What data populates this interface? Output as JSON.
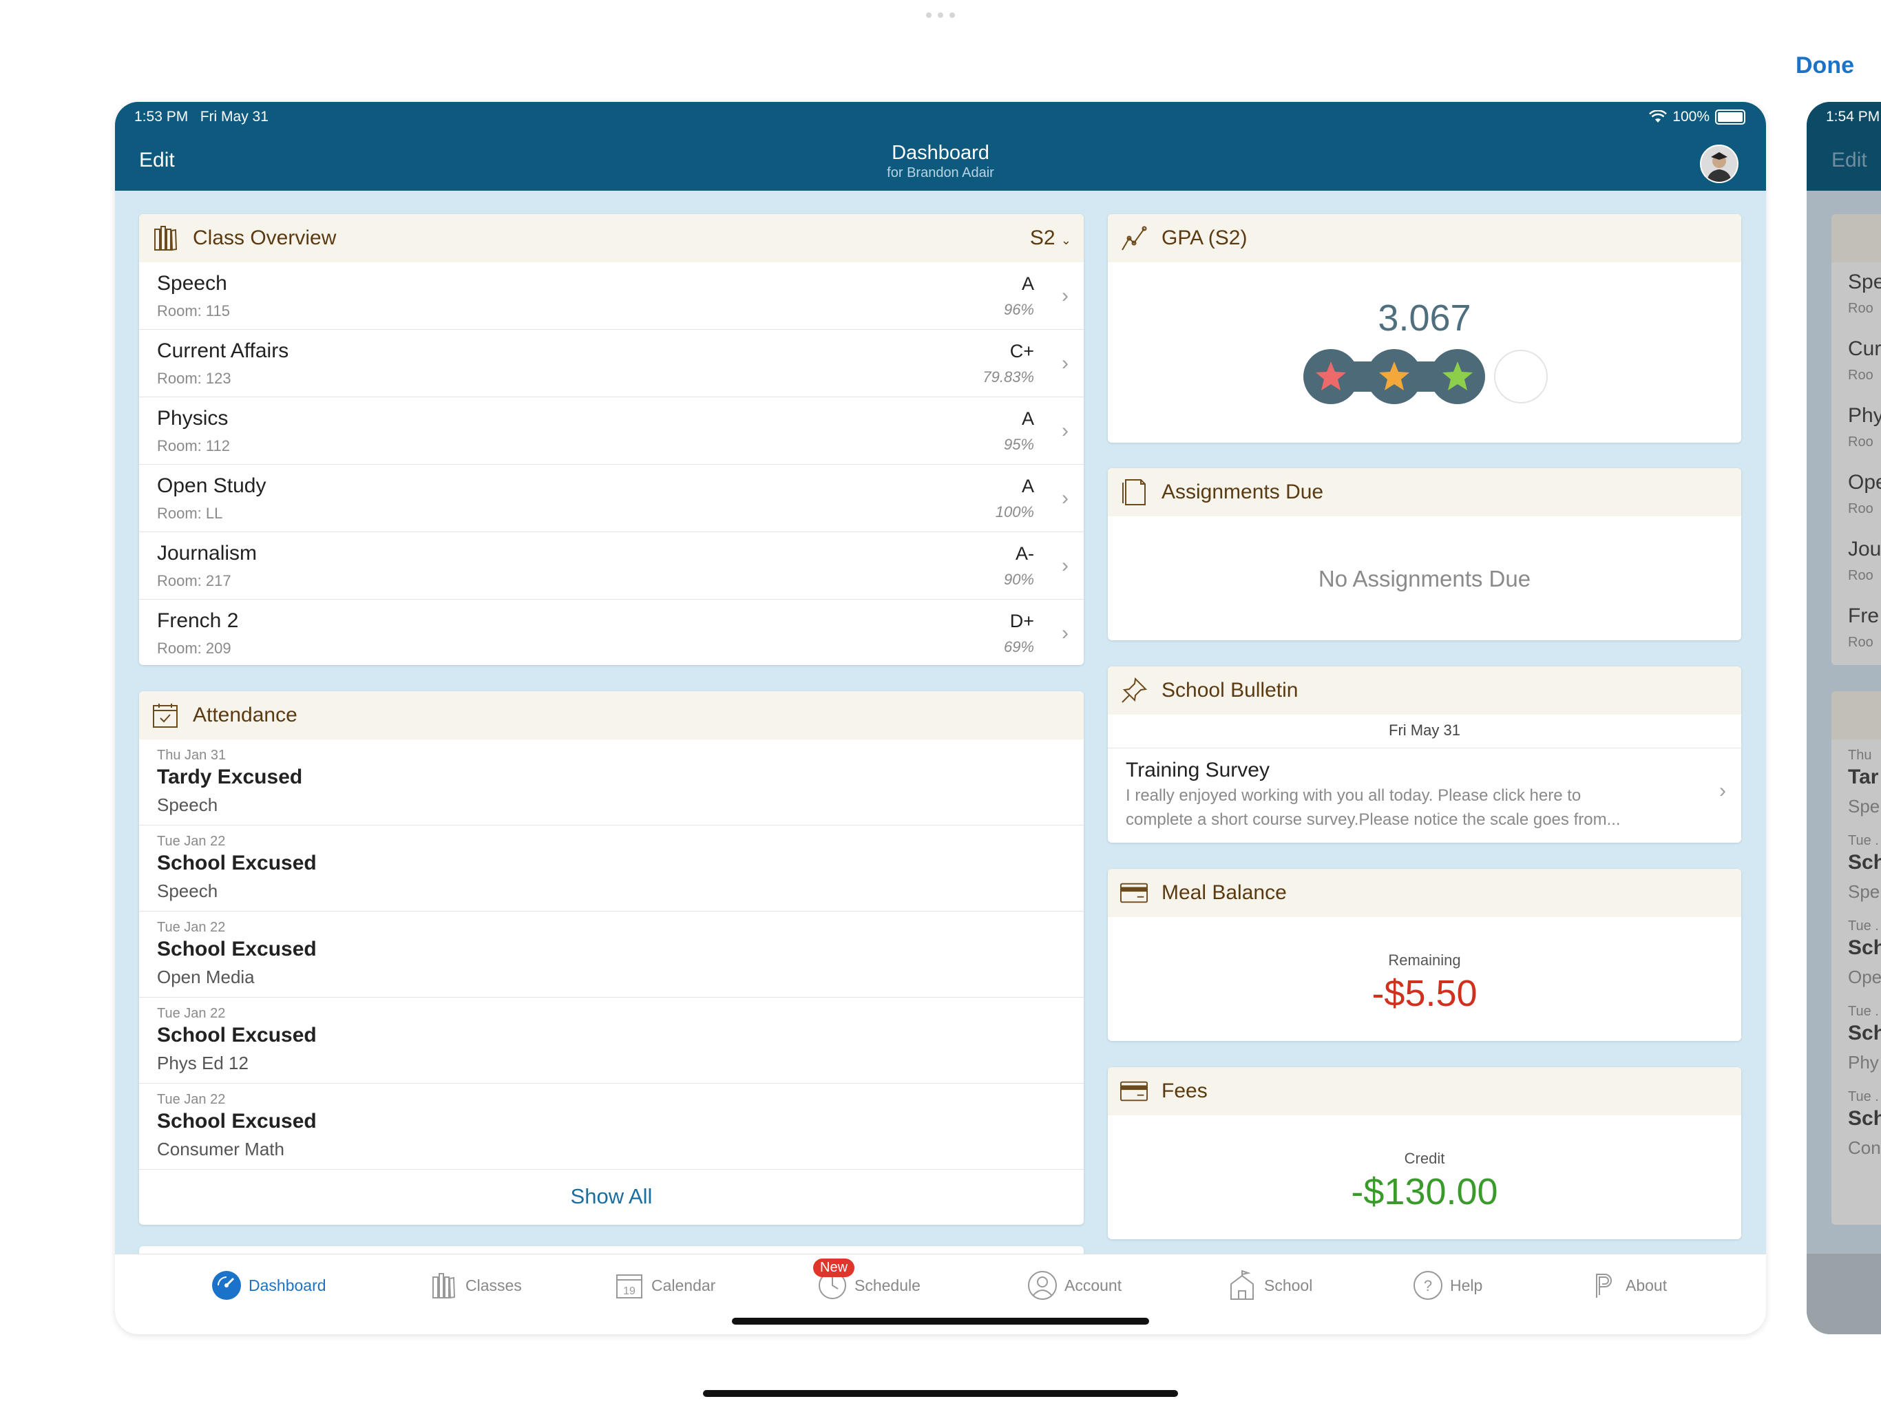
{
  "window": {
    "done_label": "Done"
  },
  "status": {
    "time": "1:53 PM",
    "date": "Fri May 31",
    "battery": "100%"
  },
  "navbar": {
    "edit_label": "Edit",
    "title": "Dashboard",
    "subtitle": "for Brandon Adair"
  },
  "class_overview": {
    "title": "Class Overview",
    "term": "S2",
    "classes": [
      {
        "name": "Speech",
        "room": "Room: 115",
        "grade": "A",
        "percent": "96%"
      },
      {
        "name": "Current Affairs",
        "room": "Room: 123",
        "grade": "C+",
        "percent": "79.83%"
      },
      {
        "name": "Physics",
        "room": "Room: 112",
        "grade": "A",
        "percent": "95%"
      },
      {
        "name": "Open Study",
        "room": "Room: LL",
        "grade": "A",
        "percent": "100%"
      },
      {
        "name": "Journalism",
        "room": "Room: 217",
        "grade": "A-",
        "percent": "90%"
      },
      {
        "name": "French 2",
        "room": "Room: 209",
        "grade": "D+",
        "percent": "69%"
      }
    ]
  },
  "attendance": {
    "title": "Attendance",
    "records": [
      {
        "date": "Thu Jan 31",
        "type": "Tardy Excused",
        "class": "Speech"
      },
      {
        "date": "Tue Jan 22",
        "type": "School Excused",
        "class": "Speech"
      },
      {
        "date": "Tue Jan 22",
        "type": "School Excused",
        "class": "Open Media"
      },
      {
        "date": "Tue Jan 22",
        "type": "School Excused",
        "class": "Phys Ed 12"
      },
      {
        "date": "Tue Jan 22",
        "type": "School Excused",
        "class": "Consumer Math"
      }
    ],
    "show_all_label": "Show All"
  },
  "gpa": {
    "title": "GPA (S2)",
    "value": "3.067",
    "stars_filled": 3,
    "stars_total": 4
  },
  "assignments": {
    "title": "Assignments Due",
    "empty_text": "No Assignments Due"
  },
  "bulletin": {
    "title": "School Bulletin",
    "date": "Fri May 31",
    "item_title": "Training Survey",
    "item_line1": "I really enjoyed working with you all today. Please click here to",
    "item_line2": "complete a short course survey.Please notice the scale goes from..."
  },
  "meal": {
    "title": "Meal Balance",
    "label": "Remaining",
    "amount": "-$5.50",
    "amount_color": "#d0311f"
  },
  "fees": {
    "title": "Fees",
    "label": "Credit",
    "amount": "-$130.00",
    "amount_color": "#3b9a2c"
  },
  "tabs": [
    {
      "label": "Dashboard",
      "icon": "dashboard-icon"
    },
    {
      "label": "Classes",
      "icon": "books-icon"
    },
    {
      "label": "Calendar",
      "icon": "calendar-icon"
    },
    {
      "label": "Schedule",
      "icon": "clock-icon"
    },
    {
      "label": "Account",
      "icon": "person-icon"
    },
    {
      "label": "School",
      "icon": "school-icon"
    },
    {
      "label": "Help",
      "icon": "question-icon"
    },
    {
      "label": "About",
      "icon": "powerschool-icon"
    }
  ],
  "tab_badge": "New",
  "calendar_icon_day": "19",
  "side_window": {
    "time": "1:54 PM",
    "edit_label": "Edit",
    "class_fragments": [
      {
        "name": "Spe",
        "room": "Roo"
      },
      {
        "name": "Cur",
        "room": "Roo"
      },
      {
        "name": "Phy",
        "room": "Roo"
      },
      {
        "name": "Ope",
        "room": "Roo"
      },
      {
        "name": "Jou",
        "room": "Roo"
      },
      {
        "name": "Fre",
        "room": "Roo"
      }
    ],
    "attendance_fragments": [
      {
        "date": "Thu",
        "type": "Tar",
        "class": "Spe"
      },
      {
        "date": "Tue .",
        "type": "Sch",
        "class": "Spe"
      },
      {
        "date": "Tue .",
        "type": "Sch",
        "class": "Ope"
      },
      {
        "date": "Tue .",
        "type": "Sch",
        "class": "Phy"
      },
      {
        "date": "Tue .",
        "type": "Sch",
        "class": "Con"
      }
    ]
  },
  "colors": {
    "nav": "#0d5a7e",
    "background": "#d3e8f2",
    "header_text": "#5b3a12",
    "accent": "#1a73c8"
  }
}
